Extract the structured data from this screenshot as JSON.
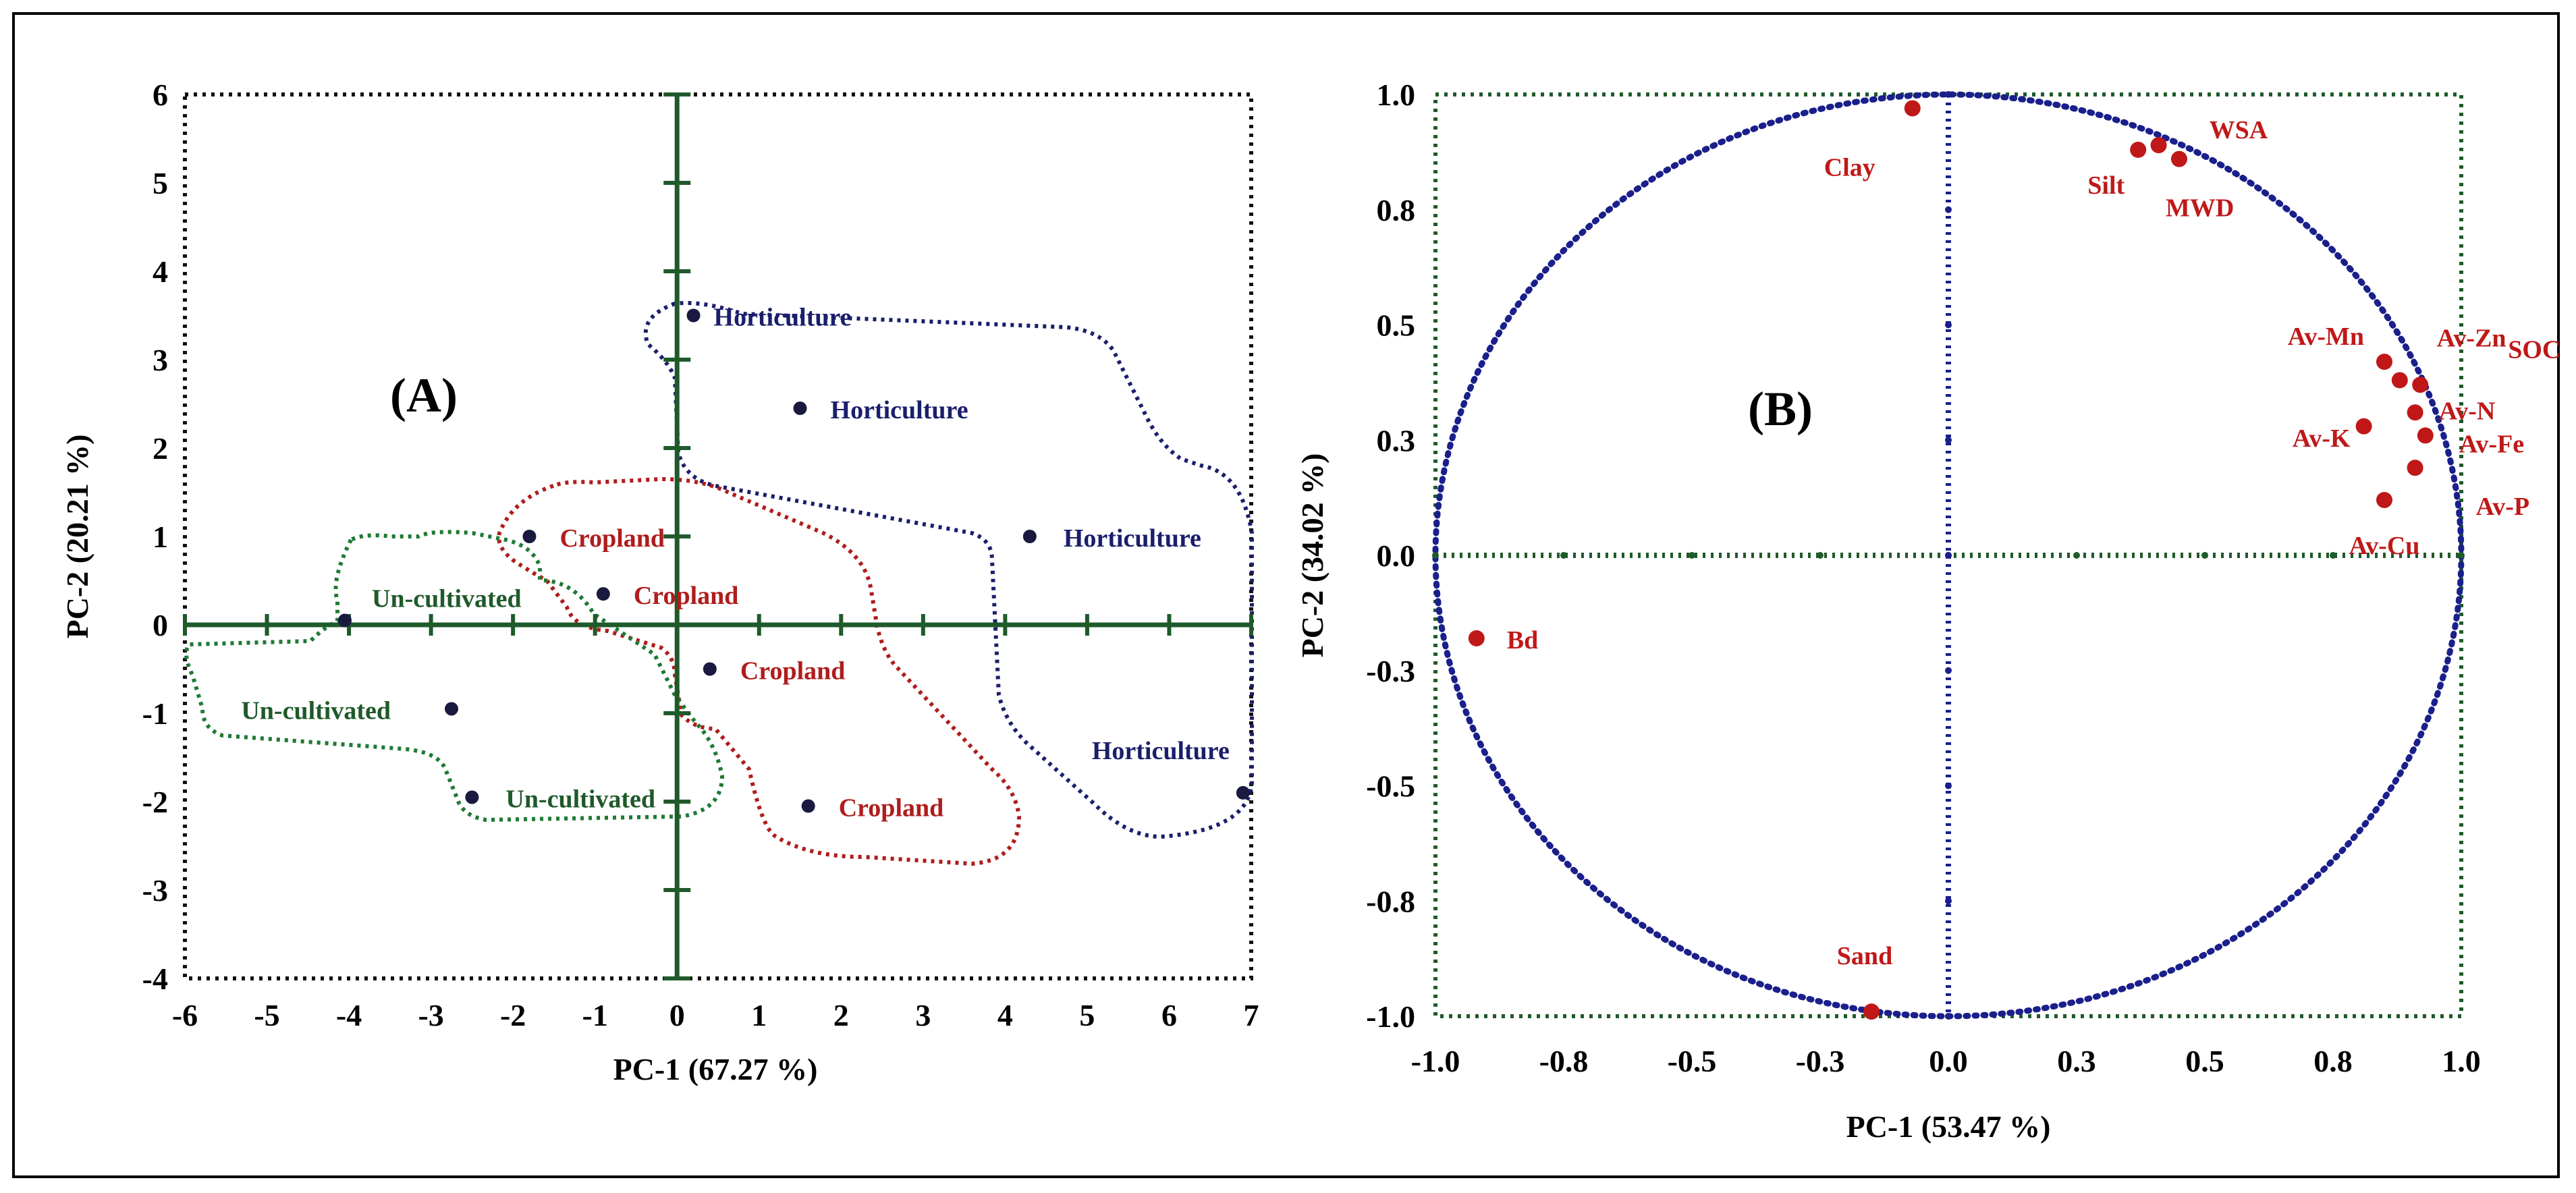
{
  "chart_data": [
    {
      "type": "scatter",
      "title": "(A)",
      "xlabel": "PC-1 (67.27 %)",
      "ylabel": "PC-2 (20.21 %)",
      "xlim": [
        -6,
        7
      ],
      "ylim": [
        -4,
        6
      ],
      "xticks": [
        "-6",
        "-5",
        "-4",
        "-3",
        "-2",
        "-1",
        "0",
        "1",
        "2",
        "3",
        "4",
        "5",
        "6",
        "7"
      ],
      "yticks": [
        "-4",
        "-3",
        "-2",
        "-1",
        "0",
        "1",
        "2",
        "3",
        "4",
        "5",
        "6"
      ],
      "groups": [
        {
          "name": "Horticulture",
          "color": "#1a1f6b",
          "outline_color": "#1a1f6b"
        },
        {
          "name": "Cropland",
          "color": "#b01c1c",
          "outline_color": "#b01c1c"
        },
        {
          "name": "Un-cultivated",
          "color": "#1f5a2a",
          "outline_color": "#1f7a34"
        }
      ],
      "points": [
        {
          "label": "Horticulture",
          "group": "Horticulture",
          "x": 0.2,
          "y": 3.5
        },
        {
          "label": "Horticulture",
          "group": "Horticulture",
          "x": 1.5,
          "y": 2.45
        },
        {
          "label": "Horticulture",
          "group": "Horticulture",
          "x": 4.3,
          "y": 1.0
        },
        {
          "label": "Horticulture",
          "group": "Horticulture",
          "x": 6.9,
          "y": -1.9
        },
        {
          "label": "Cropland",
          "group": "Cropland",
          "x": -1.8,
          "y": 1.0
        },
        {
          "label": "Cropland",
          "group": "Cropland",
          "x": -0.9,
          "y": 0.35
        },
        {
          "label": "Cropland",
          "group": "Cropland",
          "x": 0.4,
          "y": -0.5
        },
        {
          "label": "Cropland",
          "group": "Cropland",
          "x": 1.6,
          "y": -2.05
        },
        {
          "label": "Un-cultivated",
          "group": "Un-cultivated",
          "x": -4.05,
          "y": 0.05
        },
        {
          "label": "Un-cultivated",
          "group": "Un-cultivated",
          "x": -2.75,
          "y": -0.95
        },
        {
          "label": "Un-cultivated",
          "group": "Un-cultivated",
          "x": -2.5,
          "y": -1.95
        }
      ]
    },
    {
      "type": "scatter",
      "title": "(B)",
      "xlabel": "PC-1 (53.47 %)",
      "ylabel": "PC-2 (34.02 %)",
      "xlim": [
        -1.0,
        1.0
      ],
      "ylim": [
        -1.0,
        1.0
      ],
      "xticks": [
        "-1.0",
        "-0.8",
        "-0.5",
        "-0.3",
        "0.0",
        "0.3",
        "0.5",
        "0.8",
        "1.0"
      ],
      "yticks": [
        "-1.0",
        "-0.8",
        "-0.5",
        "-0.3",
        "0.0",
        "0.3",
        "0.5",
        "0.8",
        "1.0"
      ],
      "circle": {
        "radius": 1.0,
        "color": "#1a1f8b"
      },
      "point_color": "#c01818",
      "points": [
        {
          "label": "Clay",
          "x": -0.07,
          "y": 0.97
        },
        {
          "label": "Silt",
          "x": 0.37,
          "y": 0.88
        },
        {
          "label": "WSA",
          "x": 0.41,
          "y": 0.89
        },
        {
          "label": "MWD",
          "x": 0.45,
          "y": 0.86
        },
        {
          "label": "Av-Mn",
          "x": 0.85,
          "y": 0.42
        },
        {
          "label": "Av-Zn",
          "x": 0.88,
          "y": 0.38
        },
        {
          "label": "SOC",
          "x": 0.92,
          "y": 0.37
        },
        {
          "label": "Av-K",
          "x": 0.81,
          "y": 0.28
        },
        {
          "label": "Av-N",
          "x": 0.91,
          "y": 0.31
        },
        {
          "label": "Av-Fe",
          "x": 0.93,
          "y": 0.26
        },
        {
          "label": "Av-P",
          "x": 0.91,
          "y": 0.19
        },
        {
          "label": "Av-Cu",
          "x": 0.85,
          "y": 0.12
        },
        {
          "label": "Bd",
          "x": -0.92,
          "y": -0.18
        },
        {
          "label": "Sand",
          "x": -0.15,
          "y": -0.99
        }
      ]
    }
  ]
}
